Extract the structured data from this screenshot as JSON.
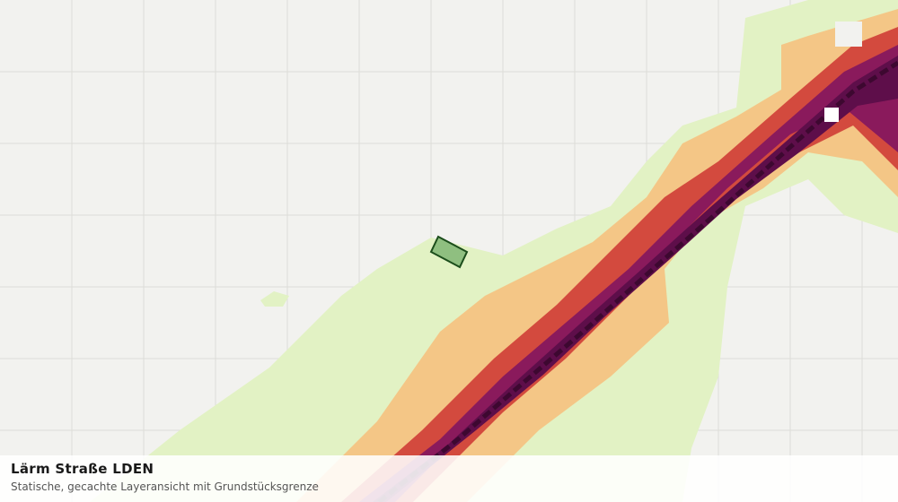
{
  "overlay": {
    "title": "Lärm Straße LDEN",
    "subtitle": "Statische, gecachte Layeransicht mit Grundstücksgrenze"
  }
}
